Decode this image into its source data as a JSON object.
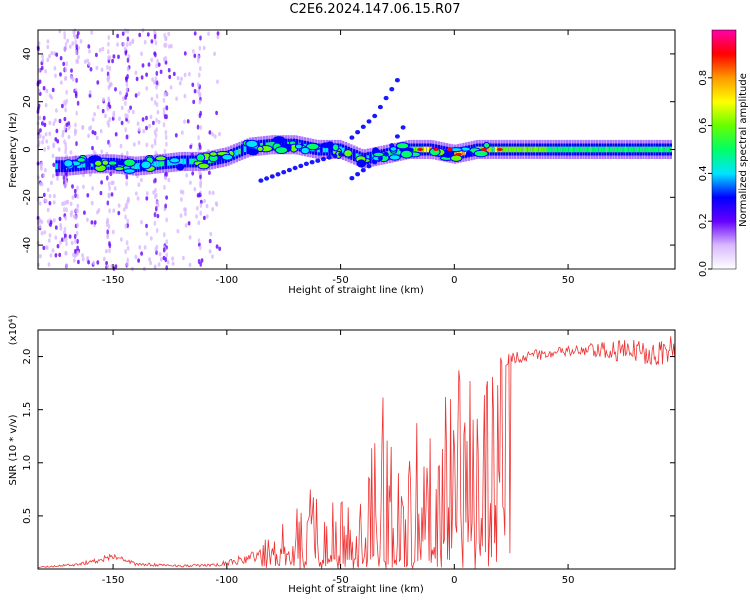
{
  "title": "C2E6.2024.147.06.15.R07",
  "chart_data": [
    {
      "type": "heatmap",
      "xlabel": "Height of straight line (km)",
      "ylabel": "Frequency (Hz)",
      "xlim": [
        -183,
        97
      ],
      "ylim": [
        -50,
        50
      ],
      "xticks": [
        -150,
        -100,
        -50,
        0,
        50
      ],
      "xtick_labels": [
        "-150",
        "-100",
        "-50",
        "0",
        "50"
      ],
      "yticks": [
        -40,
        -20,
        0,
        20,
        40
      ],
      "ytick_labels": [
        "-40",
        "-20",
        "0",
        "20",
        "40"
      ],
      "colorbar": {
        "label": "Normalized spectral amplitude",
        "range": [
          0,
          1
        ],
        "ticks": [
          0.0,
          0.2,
          0.4,
          0.6,
          0.8
        ],
        "tick_labels": [
          "0.0",
          "0.2",
          "0.4",
          "0.6",
          "0.8"
        ],
        "colors": [
          "#ffffff",
          "#d8b8ff",
          "#6600ff",
          "#0000ff",
          "#00e5ff",
          "#00ff66",
          "#66ff00",
          "#ffff00",
          "#ff9900",
          "#ff0000",
          "#ff00aa"
        ]
      },
      "main_ridge": [
        {
          "x": -170,
          "freq": -7,
          "amp": 0.25
        },
        {
          "x": -160,
          "freq": -6,
          "amp": 0.4
        },
        {
          "x": -150,
          "freq": -6,
          "amp": 0.35
        },
        {
          "x": -140,
          "freq": -7,
          "amp": 0.4
        },
        {
          "x": -130,
          "freq": -6,
          "amp": 0.45
        },
        {
          "x": -120,
          "freq": -5,
          "amp": 0.4
        },
        {
          "x": -110,
          "freq": -5,
          "amp": 0.4
        },
        {
          "x": -100,
          "freq": -3,
          "amp": 0.4
        },
        {
          "x": -90,
          "freq": 1,
          "amp": 0.4
        },
        {
          "x": -80,
          "freq": 2,
          "amp": 0.4
        },
        {
          "x": -70,
          "freq": 2,
          "amp": 0.4
        },
        {
          "x": -60,
          "freq": 0,
          "amp": 0.35
        },
        {
          "x": -50,
          "freq": 0,
          "amp": 0.4
        },
        {
          "x": -40,
          "freq": -4,
          "amp": 0.35
        },
        {
          "x": -30,
          "freq": -2,
          "amp": 0.4
        },
        {
          "x": -20,
          "freq": 0,
          "amp": 0.5
        },
        {
          "x": -10,
          "freq": 0,
          "amp": 0.85
        },
        {
          "x": 0,
          "freq": -2,
          "amp": 0.75
        },
        {
          "x": 10,
          "freq": 0,
          "amp": 0.7
        },
        {
          "x": 20,
          "freq": 0,
          "amp": 0.6
        },
        {
          "x": 40,
          "freq": 0,
          "amp": 0.55
        },
        {
          "x": 60,
          "freq": 0,
          "amp": 0.5
        },
        {
          "x": 80,
          "freq": 0,
          "amp": 0.5
        },
        {
          "x": 97,
          "freq": 0,
          "amp": 0.5
        }
      ],
      "secondary_branches": [
        {
          "points": [
            [
              -45,
              5
            ],
            [
              -35,
              14
            ],
            [
              -25,
              29
            ]
          ]
        },
        {
          "points": [
            [
              -45,
              -12
            ],
            [
              -30,
              -2
            ],
            [
              -22,
              10
            ]
          ]
        },
        {
          "points": [
            [
              -85,
              -13
            ],
            [
              -65,
              -6
            ],
            [
              -50,
              -2
            ]
          ]
        }
      ]
    },
    {
      "type": "line",
      "xlabel": "Height of straight line (km)",
      "ylabel": "SNR (10 * v/v)",
      "y_multiplier_label": "(x10⁴)",
      "xlim": [
        -183,
        97
      ],
      "ylim": [
        0,
        2.25
      ],
      "xticks": [
        -150,
        -100,
        -50,
        0,
        50
      ],
      "xtick_labels": [
        "-150",
        "-100",
        "-50",
        "0",
        "50"
      ],
      "yticks": [
        0.5,
        1.0,
        1.5,
        2.0
      ],
      "ytick_labels": [
        "0.5",
        "1.0",
        "1.5",
        "2.0"
      ],
      "line_color": "#ee3333",
      "envelope": {
        "x": [
          -183,
          -165,
          -155,
          -150,
          -140,
          -120,
          -105,
          -90,
          -80,
          -75,
          -65,
          -55,
          -45,
          -38,
          -30,
          -25,
          -18,
          -15,
          -12,
          -8,
          -5,
          0,
          5,
          10,
          15,
          18,
          22,
          30,
          50,
          70,
          97
        ],
        "base": [
          0.01,
          0.03,
          0.06,
          0.1,
          0.03,
          0.02,
          0.02,
          0.05,
          0.1,
          0.12,
          0.2,
          0.22,
          0.22,
          0.25,
          0.2,
          0.18,
          0.1,
          0.45,
          0.55,
          0.75,
          0.95,
          1.05,
          1.15,
          1.05,
          0.95,
          1.5,
          1.9,
          1.95,
          2.0,
          1.95,
          1.9
        ],
        "peak": [
          0.02,
          0.06,
          0.12,
          0.15,
          0.06,
          0.04,
          0.05,
          0.15,
          0.35,
          0.45,
          0.75,
          0.75,
          0.85,
          1.05,
          1.85,
          1.0,
          1.85,
          2.25,
          1.3,
          1.45,
          1.55,
          2.05,
          1.7,
          2.15,
          2.15,
          2.1,
          2.1,
          2.05,
          2.1,
          2.15,
          2.2
        ]
      }
    }
  ]
}
